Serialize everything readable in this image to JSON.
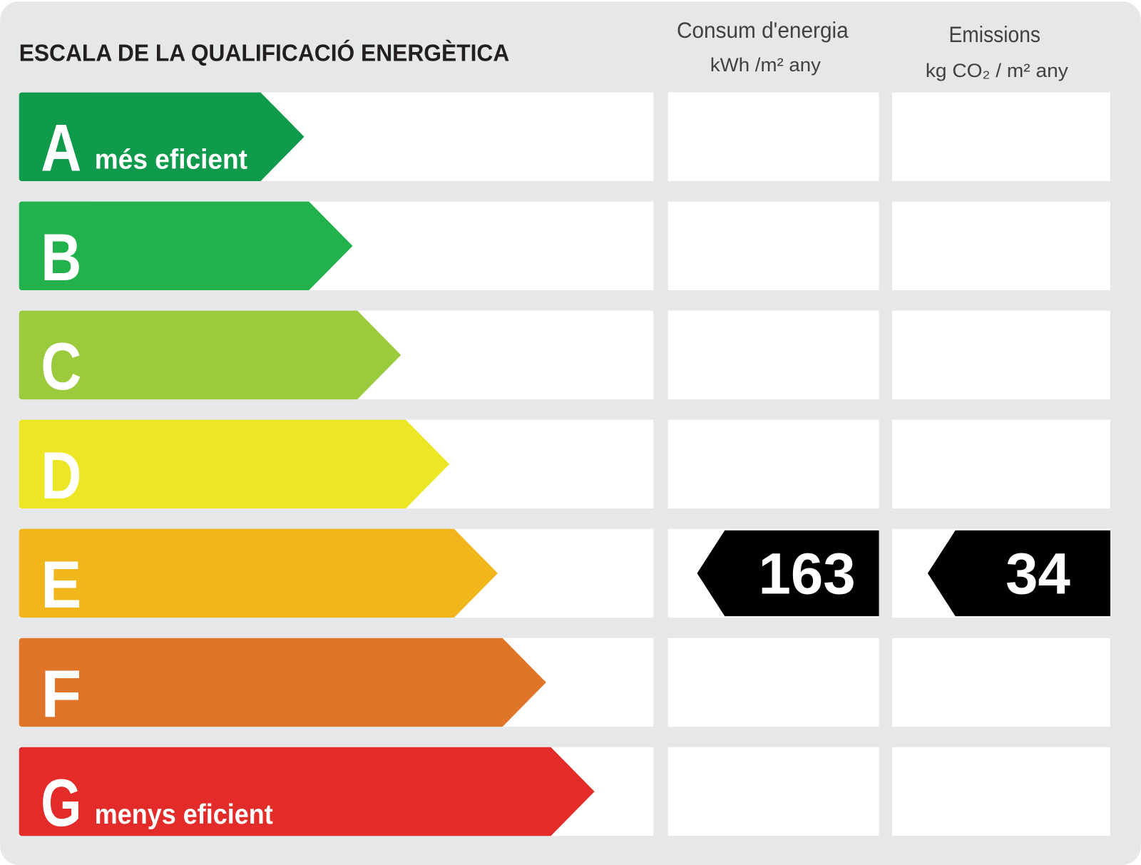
{
  "title": "ESCALA DE LA QUALIFICACIÓ ENERGÈTICA",
  "columns": {
    "consumption": {
      "title": "Consum d'energia",
      "unit": "kWh /m² any"
    },
    "emissions": {
      "title": "Emissions",
      "unit": "kg CO₂ / m² any"
    }
  },
  "rows": [
    {
      "letter": "A",
      "note": "més eficient",
      "color": "#0f9a4c"
    },
    {
      "letter": "B",
      "color": "#22b14c"
    },
    {
      "letter": "C",
      "color": "#9bca3c"
    },
    {
      "letter": "D",
      "color": "#ede625"
    },
    {
      "letter": "E",
      "color": "#f0b61c",
      "consumption": 163,
      "emissions": 34
    },
    {
      "letter": "F",
      "color": "#e07428"
    },
    {
      "letter": "G",
      "note": "menys eficient",
      "color": "#e32c29"
    }
  ]
}
